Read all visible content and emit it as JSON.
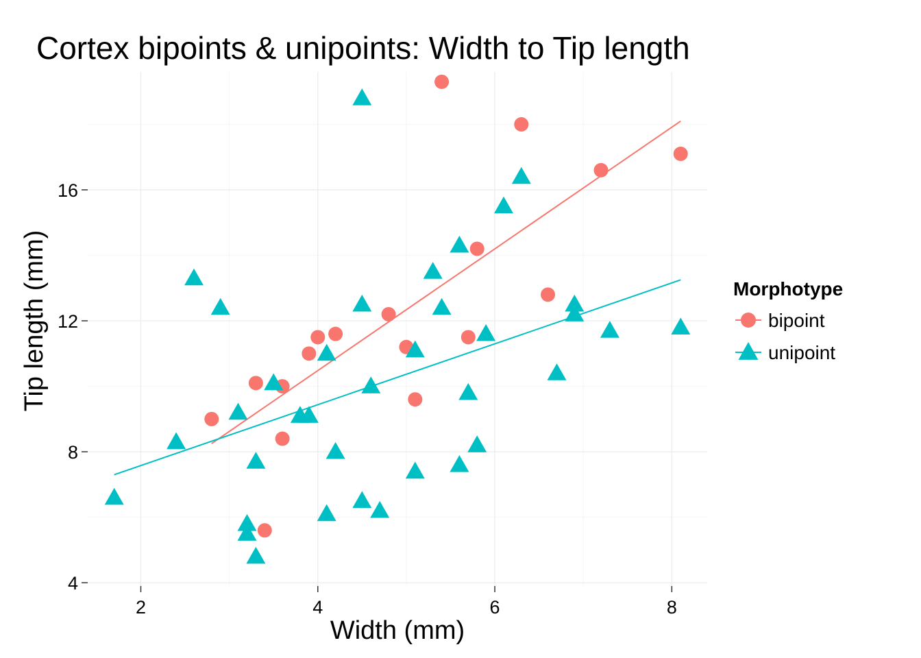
{
  "chart_data": {
    "type": "scatter",
    "title": "Cortex bipoints & unipoints: Width to Tip length",
    "xlabel": "Width (mm)",
    "ylabel": "Tip length (mm)",
    "xlim": [
      1.4,
      8.4
    ],
    "ylim": [
      3.9,
      19.6
    ],
    "x_ticks": [
      2,
      4,
      6,
      8
    ],
    "y_ticks": [
      4,
      8,
      12,
      16
    ],
    "grid": true,
    "legend": {
      "title": "Morphotype",
      "position": "right"
    },
    "series": [
      {
        "name": "bipoint",
        "marker": "circle",
        "color": "#F8766D",
        "points": [
          [
            5.4,
            19.3
          ],
          [
            6.3,
            18.0
          ],
          [
            8.1,
            17.1
          ],
          [
            7.2,
            16.6
          ],
          [
            5.8,
            14.2
          ],
          [
            6.6,
            12.8
          ],
          [
            4.8,
            12.2
          ],
          [
            4.0,
            11.5
          ],
          [
            4.2,
            11.6
          ],
          [
            3.9,
            11.0
          ],
          [
            5.0,
            11.2
          ],
          [
            5.7,
            11.5
          ],
          [
            3.3,
            10.1
          ],
          [
            3.6,
            10.0
          ],
          [
            5.1,
            9.6
          ],
          [
            2.8,
            9.0
          ],
          [
            3.6,
            8.4
          ],
          [
            3.4,
            5.6
          ]
        ],
        "fit": {
          "x": [
            2.8,
            8.1
          ],
          "y": [
            8.25,
            18.1
          ]
        }
      },
      {
        "name": "unipoint",
        "marker": "triangle",
        "color": "#00BFC4",
        "points": [
          [
            4.5,
            18.8
          ],
          [
            6.3,
            16.4
          ],
          [
            6.1,
            15.5
          ],
          [
            5.6,
            14.3
          ],
          [
            5.3,
            13.5
          ],
          [
            2.6,
            13.3
          ],
          [
            2.9,
            12.4
          ],
          [
            4.5,
            12.5
          ],
          [
            5.4,
            12.4
          ],
          [
            6.9,
            12.5
          ],
          [
            6.9,
            12.2
          ],
          [
            8.1,
            11.8
          ],
          [
            7.3,
            11.7
          ],
          [
            5.9,
            11.6
          ],
          [
            4.1,
            11.0
          ],
          [
            5.1,
            11.1
          ],
          [
            3.5,
            10.1
          ],
          [
            4.6,
            10.0
          ],
          [
            6.7,
            10.4
          ],
          [
            5.7,
            9.8
          ],
          [
            3.1,
            9.2
          ],
          [
            3.8,
            9.1
          ],
          [
            3.9,
            9.1
          ],
          [
            2.4,
            8.3
          ],
          [
            5.8,
            8.2
          ],
          [
            4.2,
            8.0
          ],
          [
            3.3,
            7.7
          ],
          [
            5.6,
            7.6
          ],
          [
            5.1,
            7.4
          ],
          [
            1.7,
            6.6
          ],
          [
            4.5,
            6.5
          ],
          [
            4.7,
            6.2
          ],
          [
            4.1,
            6.1
          ],
          [
            3.2,
            5.8
          ],
          [
            3.2,
            5.5
          ],
          [
            3.3,
            4.8
          ]
        ],
        "fit": {
          "x": [
            1.7,
            8.1
          ],
          "y": [
            7.3,
            13.25
          ]
        }
      }
    ]
  }
}
